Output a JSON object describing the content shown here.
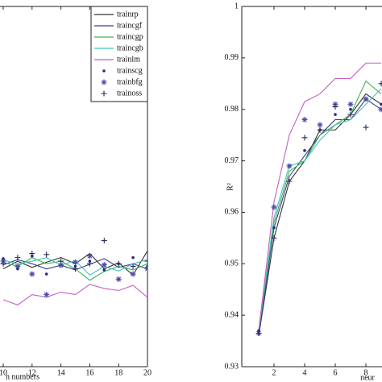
{
  "chart_data": [
    {
      "type": "line",
      "xlabel": "n numbers",
      "x": [
        10,
        11,
        12,
        13,
        14,
        15,
        16,
        17,
        18,
        19,
        20
      ],
      "xlim": [
        0,
        20
      ],
      "xticks": [
        10,
        12,
        14,
        16,
        18,
        20
      ],
      "ylim": [
        0.93,
        1
      ],
      "legend": "upper right",
      "series": [
        {
          "name": "trainrp",
          "color": "#333333",
          "style": "line",
          "values": [
            0.949,
            0.9505,
            0.9493,
            0.9503,
            0.9512,
            0.95,
            0.952,
            0.949,
            0.9502,
            0.9478,
            0.9525
          ]
        },
        {
          "name": "traincgf",
          "color": "#3f3a8a",
          "style": "line",
          "values": [
            0.9498,
            0.9508,
            0.95,
            0.949,
            0.9497,
            0.9488,
            0.9499,
            0.951,
            0.9493,
            0.95,
            0.949
          ]
        },
        {
          "name": "traincgp",
          "color": "#3cb44b",
          "style": "line",
          "values": [
            0.9503,
            0.9495,
            0.9512,
            0.95,
            0.9505,
            0.949,
            0.9468,
            0.9485,
            0.9495,
            0.9488,
            0.95
          ]
        },
        {
          "name": "traincgb",
          "color": "#3cc3c3",
          "style": "line",
          "values": [
            0.9507,
            0.95,
            0.9505,
            0.9512,
            0.9497,
            0.9506,
            0.9478,
            0.9495,
            0.9486,
            0.95,
            0.9508
          ]
        },
        {
          "name": "trainlm",
          "color": "#c060c0",
          "style": "line",
          "values": [
            0.943,
            0.942,
            0.944,
            0.9435,
            0.9445,
            0.944,
            0.946,
            0.9452,
            0.9448,
            0.9458,
            0.9435
          ]
        },
        {
          "name": "trainscg",
          "color": "#2a2a80",
          "style": "dot",
          "values": [
            0.951,
            0.949,
            0.9515,
            0.948,
            0.9498,
            0.9495,
            0.9505,
            0.9488,
            0.95,
            0.9512,
            0.9495
          ]
        },
        {
          "name": "trainbfg",
          "color": "#4a4aa8",
          "style": "star",
          "values": [
            0.9505,
            0.9495,
            0.948,
            0.944,
            0.9497,
            0.9503,
            0.9515,
            0.9498,
            0.947,
            0.948,
            0.949
          ]
        },
        {
          "name": "trainoss",
          "color": "#2a2a5a",
          "style": "plus",
          "values": [
            0.95,
            0.9512,
            0.952,
            0.9518,
            0.9505,
            0.949,
            0.95,
            0.9545,
            0.95,
            0.9495,
            0.9505
          ]
        }
      ]
    },
    {
      "type": "line",
      "ylabel": "R²",
      "xlabel": "neur",
      "x": [
        1,
        2,
        3,
        4,
        5,
        6,
        7,
        8,
        9
      ],
      "xlim": [
        0,
        20
      ],
      "xticks": [
        2,
        4,
        6,
        8
      ],
      "ylim": [
        0.93,
        1
      ],
      "yticks": [
        0.93,
        0.94,
        0.95,
        0.96,
        0.97,
        0.98,
        0.99,
        1
      ],
      "series": [
        {
          "color": "#333333",
          "style": "line",
          "values": [
            0.936,
            0.955,
            0.966,
            0.97,
            0.976,
            0.976,
            0.979,
            0.983,
            0.981
          ]
        },
        {
          "color": "#3f3a8a",
          "style": "line",
          "values": [
            0.936,
            0.957,
            0.967,
            0.971,
            0.975,
            0.978,
            0.978,
            0.982,
            0.98
          ]
        },
        {
          "color": "#3cb44b",
          "style": "line",
          "values": [
            0.937,
            0.958,
            0.968,
            0.97,
            0.975,
            0.977,
            0.979,
            0.9855,
            0.983
          ]
        },
        {
          "color": "#3cc3c3",
          "style": "line",
          "values": [
            0.937,
            0.959,
            0.969,
            0.97,
            0.974,
            0.977,
            0.978,
            0.981,
            0.984
          ]
        },
        {
          "color": "#c060c0",
          "style": "line",
          "values": [
            0.937,
            0.962,
            0.975,
            0.9815,
            0.983,
            0.986,
            0.986,
            0.989,
            0.989
          ]
        },
        {
          "color": "#2a2a80",
          "style": "dot",
          "values": [
            0.937,
            0.957,
            0.969,
            0.972,
            0.976,
            0.979,
            0.98,
            0.982,
            0.981
          ]
        },
        {
          "color": "#4a4aa8",
          "style": "star",
          "values": [
            0.9365,
            0.961,
            0.969,
            0.978,
            0.977,
            0.981,
            0.981,
            0.982,
            0.98
          ]
        },
        {
          "color": "#2a2a5a",
          "style": "plus",
          "values": [
            0.9365,
            0.955,
            0.966,
            0.9745,
            0.976,
            0.9805,
            0.979,
            0.9765,
            0.985
          ]
        }
      ]
    }
  ]
}
